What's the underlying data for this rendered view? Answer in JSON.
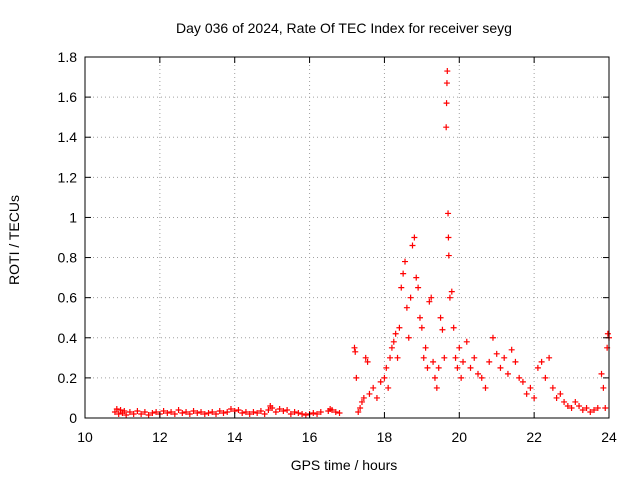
{
  "chart_data": {
    "type": "scatter",
    "title": "Day 036 of 2024, Rate Of TEC Index for receiver seyg",
    "xlabel": "GPS time / hours",
    "ylabel": "ROTI / TECUs",
    "xlim": [
      10,
      24
    ],
    "ylim": [
      0,
      1.8
    ],
    "xticks": [
      10,
      12,
      14,
      16,
      18,
      20,
      22,
      24
    ],
    "xtick_labels": [
      "10",
      "12",
      "14",
      "16",
      "18",
      "20",
      "22",
      "24"
    ],
    "yticks": [
      0,
      0.2,
      0.4,
      0.6,
      0.8,
      1.0,
      1.2,
      1.4,
      1.6,
      1.8
    ],
    "ytick_labels": [
      "0",
      "0.2",
      "0.4",
      "0.6",
      "0.8",
      "1",
      "1.2",
      "1.4",
      "1.6",
      "1.8"
    ],
    "grid": true,
    "marker": "+",
    "series": [
      {
        "name": "ROTI",
        "color": "#ff0000",
        "points": [
          [
            10.8,
            0.03
          ],
          [
            10.85,
            0.045
          ],
          [
            10.9,
            0.02
          ],
          [
            10.95,
            0.04
          ],
          [
            11.0,
            0.025
          ],
          [
            11.05,
            0.035
          ],
          [
            11.1,
            0.015
          ],
          [
            11.2,
            0.03
          ],
          [
            11.3,
            0.02
          ],
          [
            11.4,
            0.035
          ],
          [
            11.5,
            0.02
          ],
          [
            11.6,
            0.03
          ],
          [
            11.7,
            0.015
          ],
          [
            11.8,
            0.025
          ],
          [
            11.9,
            0.03
          ],
          [
            12.0,
            0.02
          ],
          [
            12.1,
            0.035
          ],
          [
            12.2,
            0.025
          ],
          [
            12.3,
            0.03
          ],
          [
            12.4,
            0.02
          ],
          [
            12.5,
            0.04
          ],
          [
            12.6,
            0.025
          ],
          [
            12.7,
            0.03
          ],
          [
            12.8,
            0.02
          ],
          [
            12.9,
            0.035
          ],
          [
            13.0,
            0.025
          ],
          [
            13.1,
            0.03
          ],
          [
            13.2,
            0.02
          ],
          [
            13.3,
            0.025
          ],
          [
            13.4,
            0.03
          ],
          [
            13.5,
            0.02
          ],
          [
            13.6,
            0.035
          ],
          [
            13.7,
            0.025
          ],
          [
            13.8,
            0.03
          ],
          [
            13.9,
            0.045
          ],
          [
            14.0,
            0.035
          ],
          [
            14.1,
            0.04
          ],
          [
            14.2,
            0.025
          ],
          [
            14.3,
            0.03
          ],
          [
            14.4,
            0.02
          ],
          [
            14.5,
            0.03
          ],
          [
            14.6,
            0.025
          ],
          [
            14.7,
            0.035
          ],
          [
            14.8,
            0.02
          ],
          [
            14.9,
            0.04
          ],
          [
            14.95,
            0.06
          ],
          [
            15.0,
            0.05
          ],
          [
            15.1,
            0.03
          ],
          [
            15.2,
            0.045
          ],
          [
            15.3,
            0.035
          ],
          [
            15.4,
            0.04
          ],
          [
            15.5,
            0.02
          ],
          [
            15.6,
            0.03
          ],
          [
            15.7,
            0.025
          ],
          [
            15.8,
            0.02
          ],
          [
            15.9,
            0.015
          ],
          [
            16.0,
            0.02
          ],
          [
            16.1,
            0.025
          ],
          [
            16.2,
            0.02
          ],
          [
            16.3,
            0.03
          ],
          [
            16.5,
            0.035
          ],
          [
            16.55,
            0.045
          ],
          [
            16.6,
            0.04
          ],
          [
            16.7,
            0.03
          ],
          [
            16.8,
            0.025
          ],
          [
            17.2,
            0.35
          ],
          [
            17.22,
            0.33
          ],
          [
            17.25,
            0.2
          ],
          [
            17.3,
            0.03
          ],
          [
            17.35,
            0.05
          ],
          [
            17.4,
            0.08
          ],
          [
            17.45,
            0.1
          ],
          [
            17.5,
            0.3
          ],
          [
            17.55,
            0.28
          ],
          [
            17.6,
            0.12
          ],
          [
            17.7,
            0.15
          ],
          [
            17.8,
            0.1
          ],
          [
            17.9,
            0.18
          ],
          [
            18.0,
            0.2
          ],
          [
            18.05,
            0.25
          ],
          [
            18.1,
            0.15
          ],
          [
            18.15,
            0.3
          ],
          [
            18.2,
            0.35
          ],
          [
            18.25,
            0.38
          ],
          [
            18.3,
            0.42
          ],
          [
            18.35,
            0.3
          ],
          [
            18.4,
            0.45
          ],
          [
            18.45,
            0.65
          ],
          [
            18.5,
            0.72
          ],
          [
            18.55,
            0.78
          ],
          [
            18.6,
            0.55
          ],
          [
            18.65,
            0.4
          ],
          [
            18.7,
            0.6
          ],
          [
            18.75,
            0.86
          ],
          [
            18.8,
            0.9
          ],
          [
            18.85,
            0.7
          ],
          [
            18.9,
            0.65
          ],
          [
            18.95,
            0.5
          ],
          [
            19.0,
            0.45
          ],
          [
            19.05,
            0.3
          ],
          [
            19.1,
            0.35
          ],
          [
            19.15,
            0.25
          ],
          [
            19.2,
            0.58
          ],
          [
            19.25,
            0.6
          ],
          [
            19.3,
            0.28
          ],
          [
            19.35,
            0.2
          ],
          [
            19.4,
            0.15
          ],
          [
            19.45,
            0.25
          ],
          [
            19.5,
            0.5
          ],
          [
            19.55,
            0.44
          ],
          [
            19.6,
            0.3
          ],
          [
            19.65,
            1.45
          ],
          [
            19.66,
            1.57
          ],
          [
            19.67,
            1.67
          ],
          [
            19.68,
            1.73
          ],
          [
            19.7,
            1.02
          ],
          [
            19.71,
            0.9
          ],
          [
            19.72,
            0.81
          ],
          [
            19.75,
            0.6
          ],
          [
            19.8,
            0.63
          ],
          [
            19.85,
            0.45
          ],
          [
            19.9,
            0.3
          ],
          [
            19.95,
            0.25
          ],
          [
            20.0,
            0.35
          ],
          [
            20.05,
            0.2
          ],
          [
            20.1,
            0.28
          ],
          [
            20.2,
            0.38
          ],
          [
            20.3,
            0.25
          ],
          [
            20.4,
            0.3
          ],
          [
            20.5,
            0.22
          ],
          [
            20.6,
            0.2
          ],
          [
            20.7,
            0.15
          ],
          [
            20.8,
            0.28
          ],
          [
            20.9,
            0.4
          ],
          [
            21.0,
            0.32
          ],
          [
            21.1,
            0.25
          ],
          [
            21.2,
            0.3
          ],
          [
            21.3,
            0.22
          ],
          [
            21.4,
            0.34
          ],
          [
            21.5,
            0.28
          ],
          [
            21.6,
            0.2
          ],
          [
            21.7,
            0.18
          ],
          [
            21.8,
            0.12
          ],
          [
            21.9,
            0.15
          ],
          [
            22.0,
            0.1
          ],
          [
            22.1,
            0.25
          ],
          [
            22.2,
            0.28
          ],
          [
            22.3,
            0.2
          ],
          [
            22.4,
            0.3
          ],
          [
            22.5,
            0.15
          ],
          [
            22.6,
            0.1
          ],
          [
            22.7,
            0.12
          ],
          [
            22.8,
            0.08
          ],
          [
            22.9,
            0.06
          ],
          [
            23.0,
            0.05
          ],
          [
            23.1,
            0.08
          ],
          [
            23.2,
            0.06
          ],
          [
            23.3,
            0.04
          ],
          [
            23.4,
            0.05
          ],
          [
            23.5,
            0.03
          ],
          [
            23.6,
            0.04
          ],
          [
            23.7,
            0.05
          ],
          [
            23.8,
            0.22
          ],
          [
            23.85,
            0.15
          ],
          [
            23.9,
            0.05
          ],
          [
            23.95,
            0.35
          ],
          [
            23.97,
            0.42
          ],
          [
            24.0,
            0.4
          ]
        ]
      }
    ]
  }
}
